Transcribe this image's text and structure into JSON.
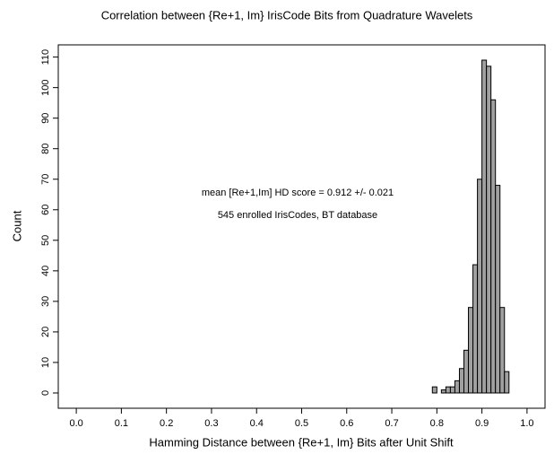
{
  "chart_data": {
    "type": "histogram",
    "title": "Correlation between {Re+1, Im} IrisCode Bits from Quadrature Wavelets",
    "xlabel": "Hamming Distance between {Re+1, Im} Bits after Unit Shift",
    "ylabel": "Count",
    "annotations": [
      "mean [Re+1,Im] HD score = 0.912 +/- 0.021",
      "545 enrolled IrisCodes, BT database"
    ],
    "bins": [
      0.79,
      0.8,
      0.81,
      0.82,
      0.83,
      0.84,
      0.85,
      0.86,
      0.87,
      0.88,
      0.89,
      0.9,
      0.91,
      0.92,
      0.93,
      0.94,
      0.95,
      0.96
    ],
    "values": [
      2,
      0,
      1,
      2,
      2,
      4,
      8,
      14,
      28,
      42,
      70,
      109,
      107,
      96,
      68,
      28,
      7
    ],
    "color": "#a0a0a0",
    "xlim": [
      -0.04,
      1.04
    ],
    "ylim": [
      -5,
      114
    ],
    "xticks": [
      {
        "value": 0,
        "label": "0.0"
      },
      0.1,
      0.2,
      0.3,
      0.4,
      0.5,
      0.6,
      0.7,
      0.8,
      0.9,
      {
        "value": 1,
        "label": "1.0"
      }
    ],
    "yticks": [
      0,
      10,
      20,
      30,
      40,
      50,
      60,
      70,
      80,
      90,
      100,
      110
    ]
  }
}
